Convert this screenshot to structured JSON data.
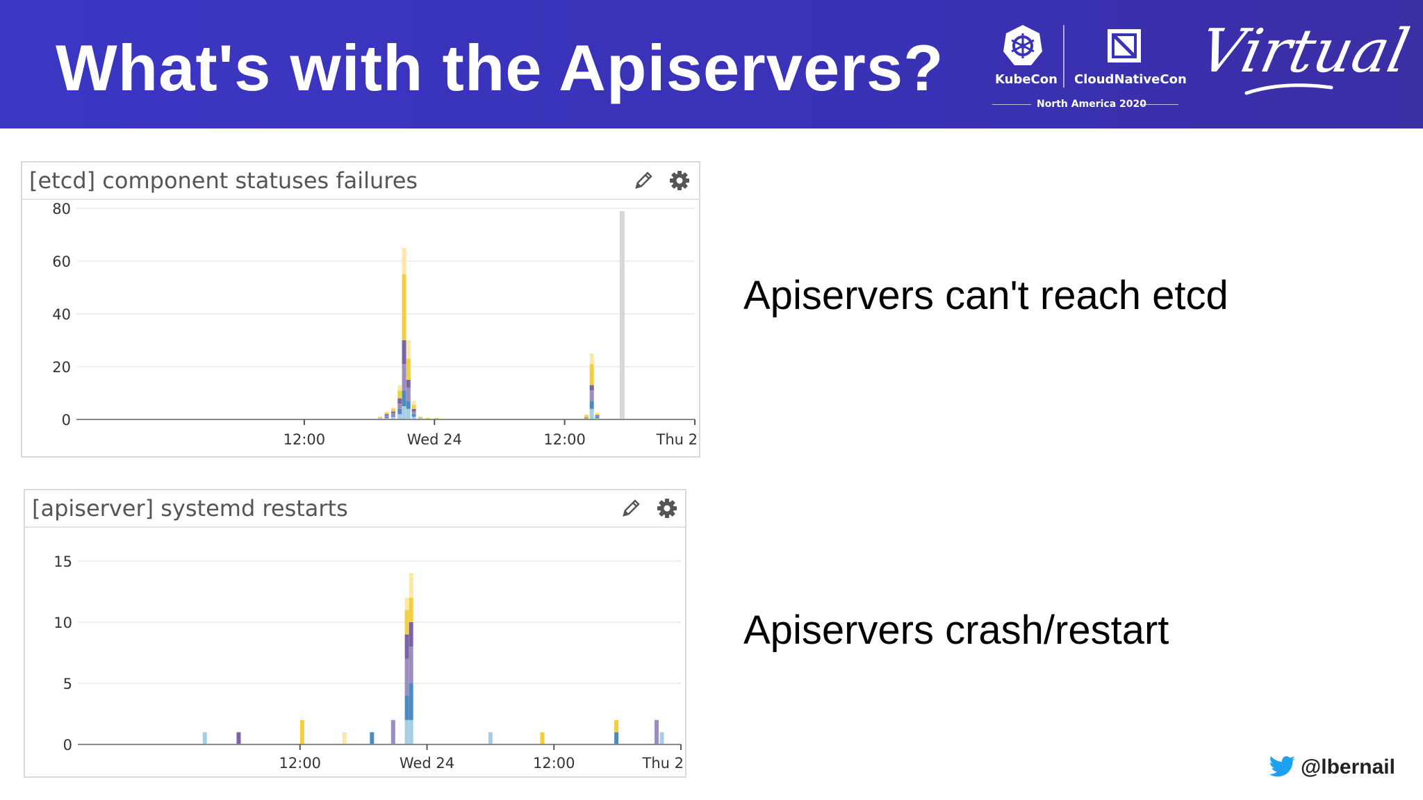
{
  "slide": {
    "title": "What's with the Apiservers?",
    "logos": {
      "kubecon": "KubeCon",
      "cncf": "CloudNativeCon",
      "event": "North America 2020",
      "virtual": "Virtual"
    },
    "bullets": [
      "Apiservers can't reach etcd",
      "Apiservers crash/restart"
    ],
    "handle": "@lbernail",
    "colors": {
      "header": "#3b36c4",
      "series": [
        "#a6cde6",
        "#4a8cbf",
        "#9c8dc0",
        "#7a64a8",
        "#f2cf40",
        "#fbe7a6"
      ]
    }
  },
  "panels": [
    {
      "title": "[etcd] component statuses failures",
      "icons": [
        "pencil-icon",
        "gear-icon"
      ]
    },
    {
      "title": "[apiserver] systemd restarts",
      "icons": [
        "pencil-icon",
        "gear-icon"
      ]
    }
  ],
  "chart_data": [
    {
      "type": "bar",
      "title": "[etcd] component statuses failures",
      "stacked": true,
      "ylim": [
        0,
        80
      ],
      "yticks": [
        0,
        20,
        40,
        60,
        80
      ],
      "xlim": [
        -33,
        24
      ],
      "xticks": [
        {
          "x": -12,
          "label": "12:00"
        },
        {
          "x": 0,
          "label": "Wed 24"
        },
        {
          "x": 12,
          "label": "12:00"
        },
        {
          "x": 24,
          "label": "Thu 2"
        }
      ],
      "marker_line_x": 17.3,
      "grid": true,
      "series_colors": [
        "#a6cde6",
        "#4a8cbf",
        "#9c8dc0",
        "#7a64a8",
        "#f2cf40",
        "#fbe7a6"
      ],
      "bars": [
        {
          "x": -5.0,
          "values": [
            0.5,
            0,
            0,
            0,
            0.5,
            0
          ]
        },
        {
          "x": -4.4,
          "values": [
            0.5,
            0.5,
            0.5,
            0.5,
            0.5,
            0.5
          ]
        },
        {
          "x": -3.8,
          "values": [
            1,
            0.5,
            1,
            0.5,
            1,
            0.5
          ]
        },
        {
          "x": -3.2,
          "values": [
            2,
            2,
            2,
            2,
            3,
            2
          ]
        },
        {
          "x": -2.8,
          "values": [
            5,
            6,
            10,
            9,
            25,
            10
          ]
        },
        {
          "x": -2.4,
          "values": [
            4,
            3,
            5,
            3,
            8,
            7
          ]
        },
        {
          "x": -1.9,
          "values": [
            1,
            1,
            1,
            1,
            1.5,
            1.5
          ]
        },
        {
          "x": -1.3,
          "values": [
            0.5,
            0,
            0,
            0,
            0.5,
            0
          ]
        },
        {
          "x": -0.6,
          "values": [
            0.3,
            0,
            0,
            0,
            0.3,
            0
          ]
        },
        {
          "x": 0.2,
          "values": [
            0.3,
            0,
            0,
            0,
            0.3,
            0
          ]
        },
        {
          "x": 14.0,
          "values": [
            0.5,
            0.2,
            0,
            0,
            1,
            0.2
          ]
        },
        {
          "x": 14.5,
          "values": [
            4,
            3,
            4,
            2,
            8,
            4
          ]
        },
        {
          "x": 15.0,
          "values": [
            0.5,
            0.5,
            0.3,
            0.3,
            0.5,
            0.5
          ]
        }
      ]
    },
    {
      "type": "bar",
      "title": "[apiserver] systemd restarts",
      "stacked": true,
      "ylim": [
        0,
        15
      ],
      "yticks": [
        0,
        5,
        10,
        15
      ],
      "xlim": [
        -33,
        24
      ],
      "xticks": [
        {
          "x": -12,
          "label": "12:00"
        },
        {
          "x": 0,
          "label": "Wed 24"
        },
        {
          "x": 12,
          "label": "12:00"
        },
        {
          "x": 24,
          "label": "Thu 2"
        }
      ],
      "grid": true,
      "series_colors": [
        "#a6cde6",
        "#4a8cbf",
        "#9c8dc0",
        "#7a64a8",
        "#f2cf40",
        "#fbe7a6"
      ],
      "bars": [
        {
          "x": -21.0,
          "values": [
            1,
            0,
            0,
            0,
            0,
            0
          ]
        },
        {
          "x": -17.8,
          "values": [
            0,
            0,
            0,
            1,
            0,
            0
          ]
        },
        {
          "x": -11.8,
          "values": [
            0,
            0,
            0,
            0,
            2,
            0
          ]
        },
        {
          "x": -7.8,
          "values": [
            0,
            0,
            0,
            0,
            0,
            1
          ]
        },
        {
          "x": -5.2,
          "values": [
            0,
            1,
            0,
            0,
            0,
            0
          ]
        },
        {
          "x": -3.2,
          "values": [
            0,
            0,
            2,
            0,
            0,
            0
          ]
        },
        {
          "x": -1.9,
          "values": [
            2,
            2,
            3,
            2,
            2,
            1
          ]
        },
        {
          "x": -1.5,
          "values": [
            2,
            3,
            3,
            2,
            2,
            2
          ]
        },
        {
          "x": 6.0,
          "values": [
            1,
            0,
            0,
            0,
            0,
            0
          ]
        },
        {
          "x": 10.9,
          "values": [
            0,
            0,
            0,
            0,
            1,
            0
          ]
        },
        {
          "x": 17.9,
          "values": [
            0,
            1,
            0,
            0,
            1,
            0
          ]
        },
        {
          "x": 21.7,
          "values": [
            0,
            0,
            2,
            0,
            0,
            0
          ]
        },
        {
          "x": 22.2,
          "values": [
            1,
            0,
            0,
            0,
            0,
            0
          ]
        }
      ]
    }
  ]
}
